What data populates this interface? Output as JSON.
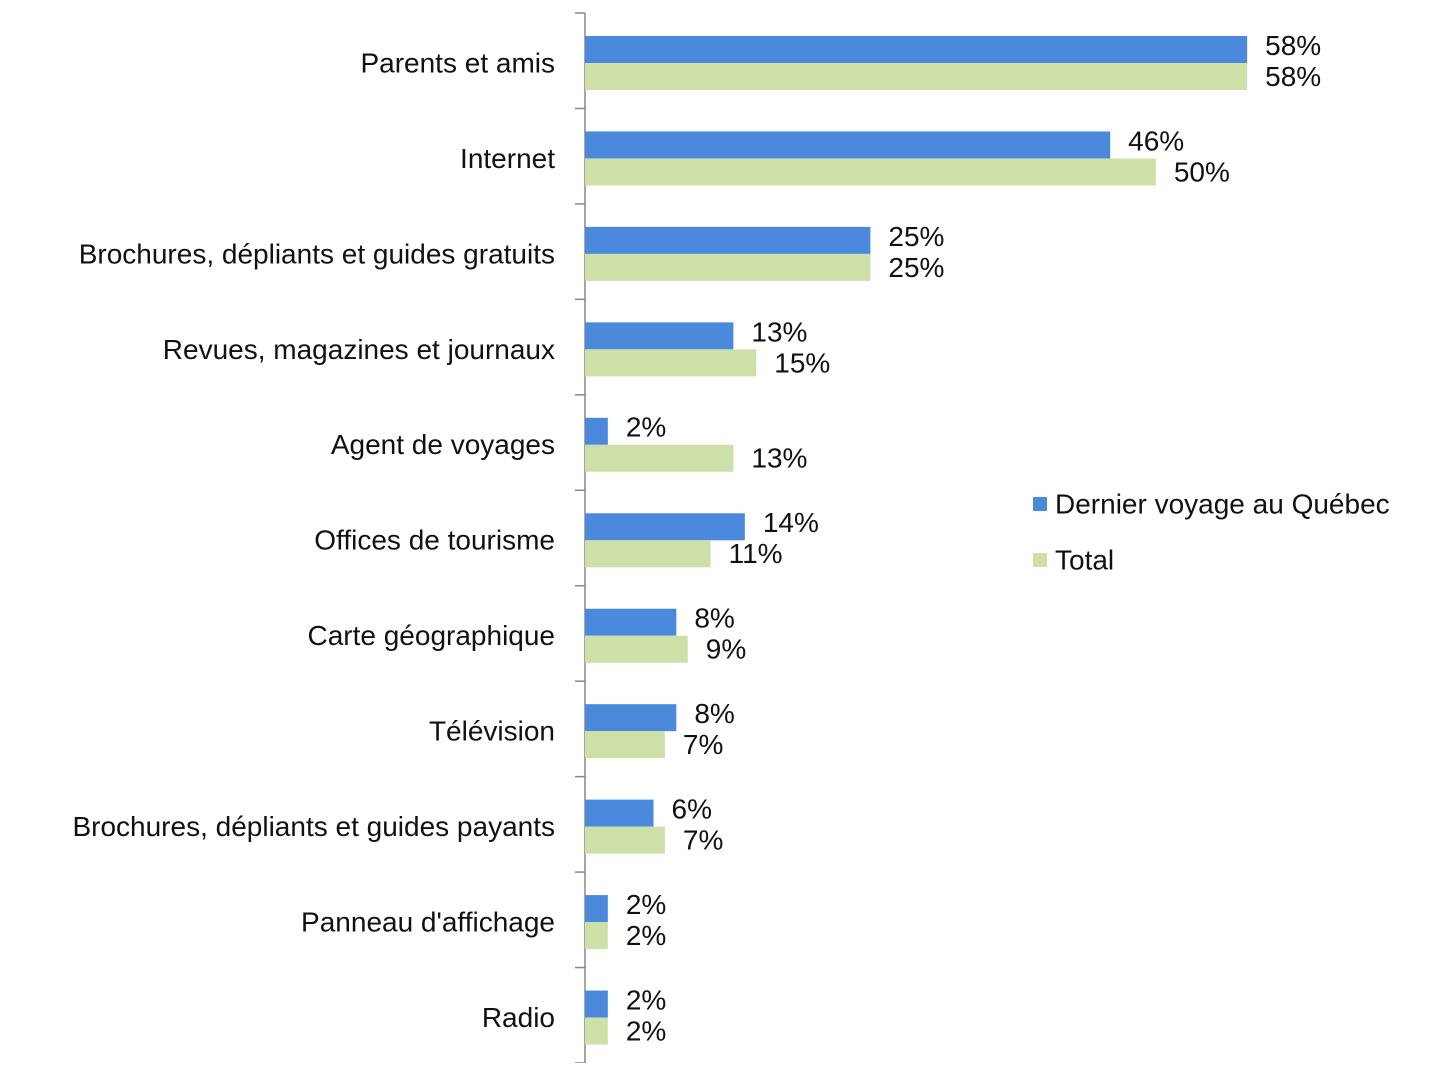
{
  "chart_data": {
    "type": "bar",
    "orientation": "horizontal",
    "categories": [
      "Parents et amis",
      "Internet",
      "Brochures, dépliants et guides gratuits",
      "Revues, magazines et journaux",
      "Agent de voyages",
      "Offices de tourisme",
      "Carte géographique",
      "Télévision",
      "Brochures, dépliants et guides payants",
      "Panneau d'affichage",
      "Radio"
    ],
    "series": [
      {
        "name": "Dernier voyage au Québec",
        "color": "#4a89dc",
        "values": [
          58,
          46,
          25,
          13,
          2,
          14,
          8,
          8,
          6,
          2,
          2
        ],
        "value_labels": [
          "58%",
          "46%",
          "25%",
          "13%",
          "2%",
          "14%",
          "8%",
          "8%",
          "6%",
          "2%",
          "2%"
        ]
      },
      {
        "name": "Total",
        "color": "#cde0a8",
        "values": [
          58,
          50,
          25,
          15,
          13,
          11,
          9,
          7,
          7,
          2,
          2
        ],
        "value_labels": [
          "58%",
          "50%",
          "25%",
          "15%",
          "13%",
          "11%",
          "9%",
          "7%",
          "7%",
          "2%",
          "2%"
        ]
      }
    ],
    "xlim": [
      0,
      60
    ],
    "legend": "right"
  }
}
